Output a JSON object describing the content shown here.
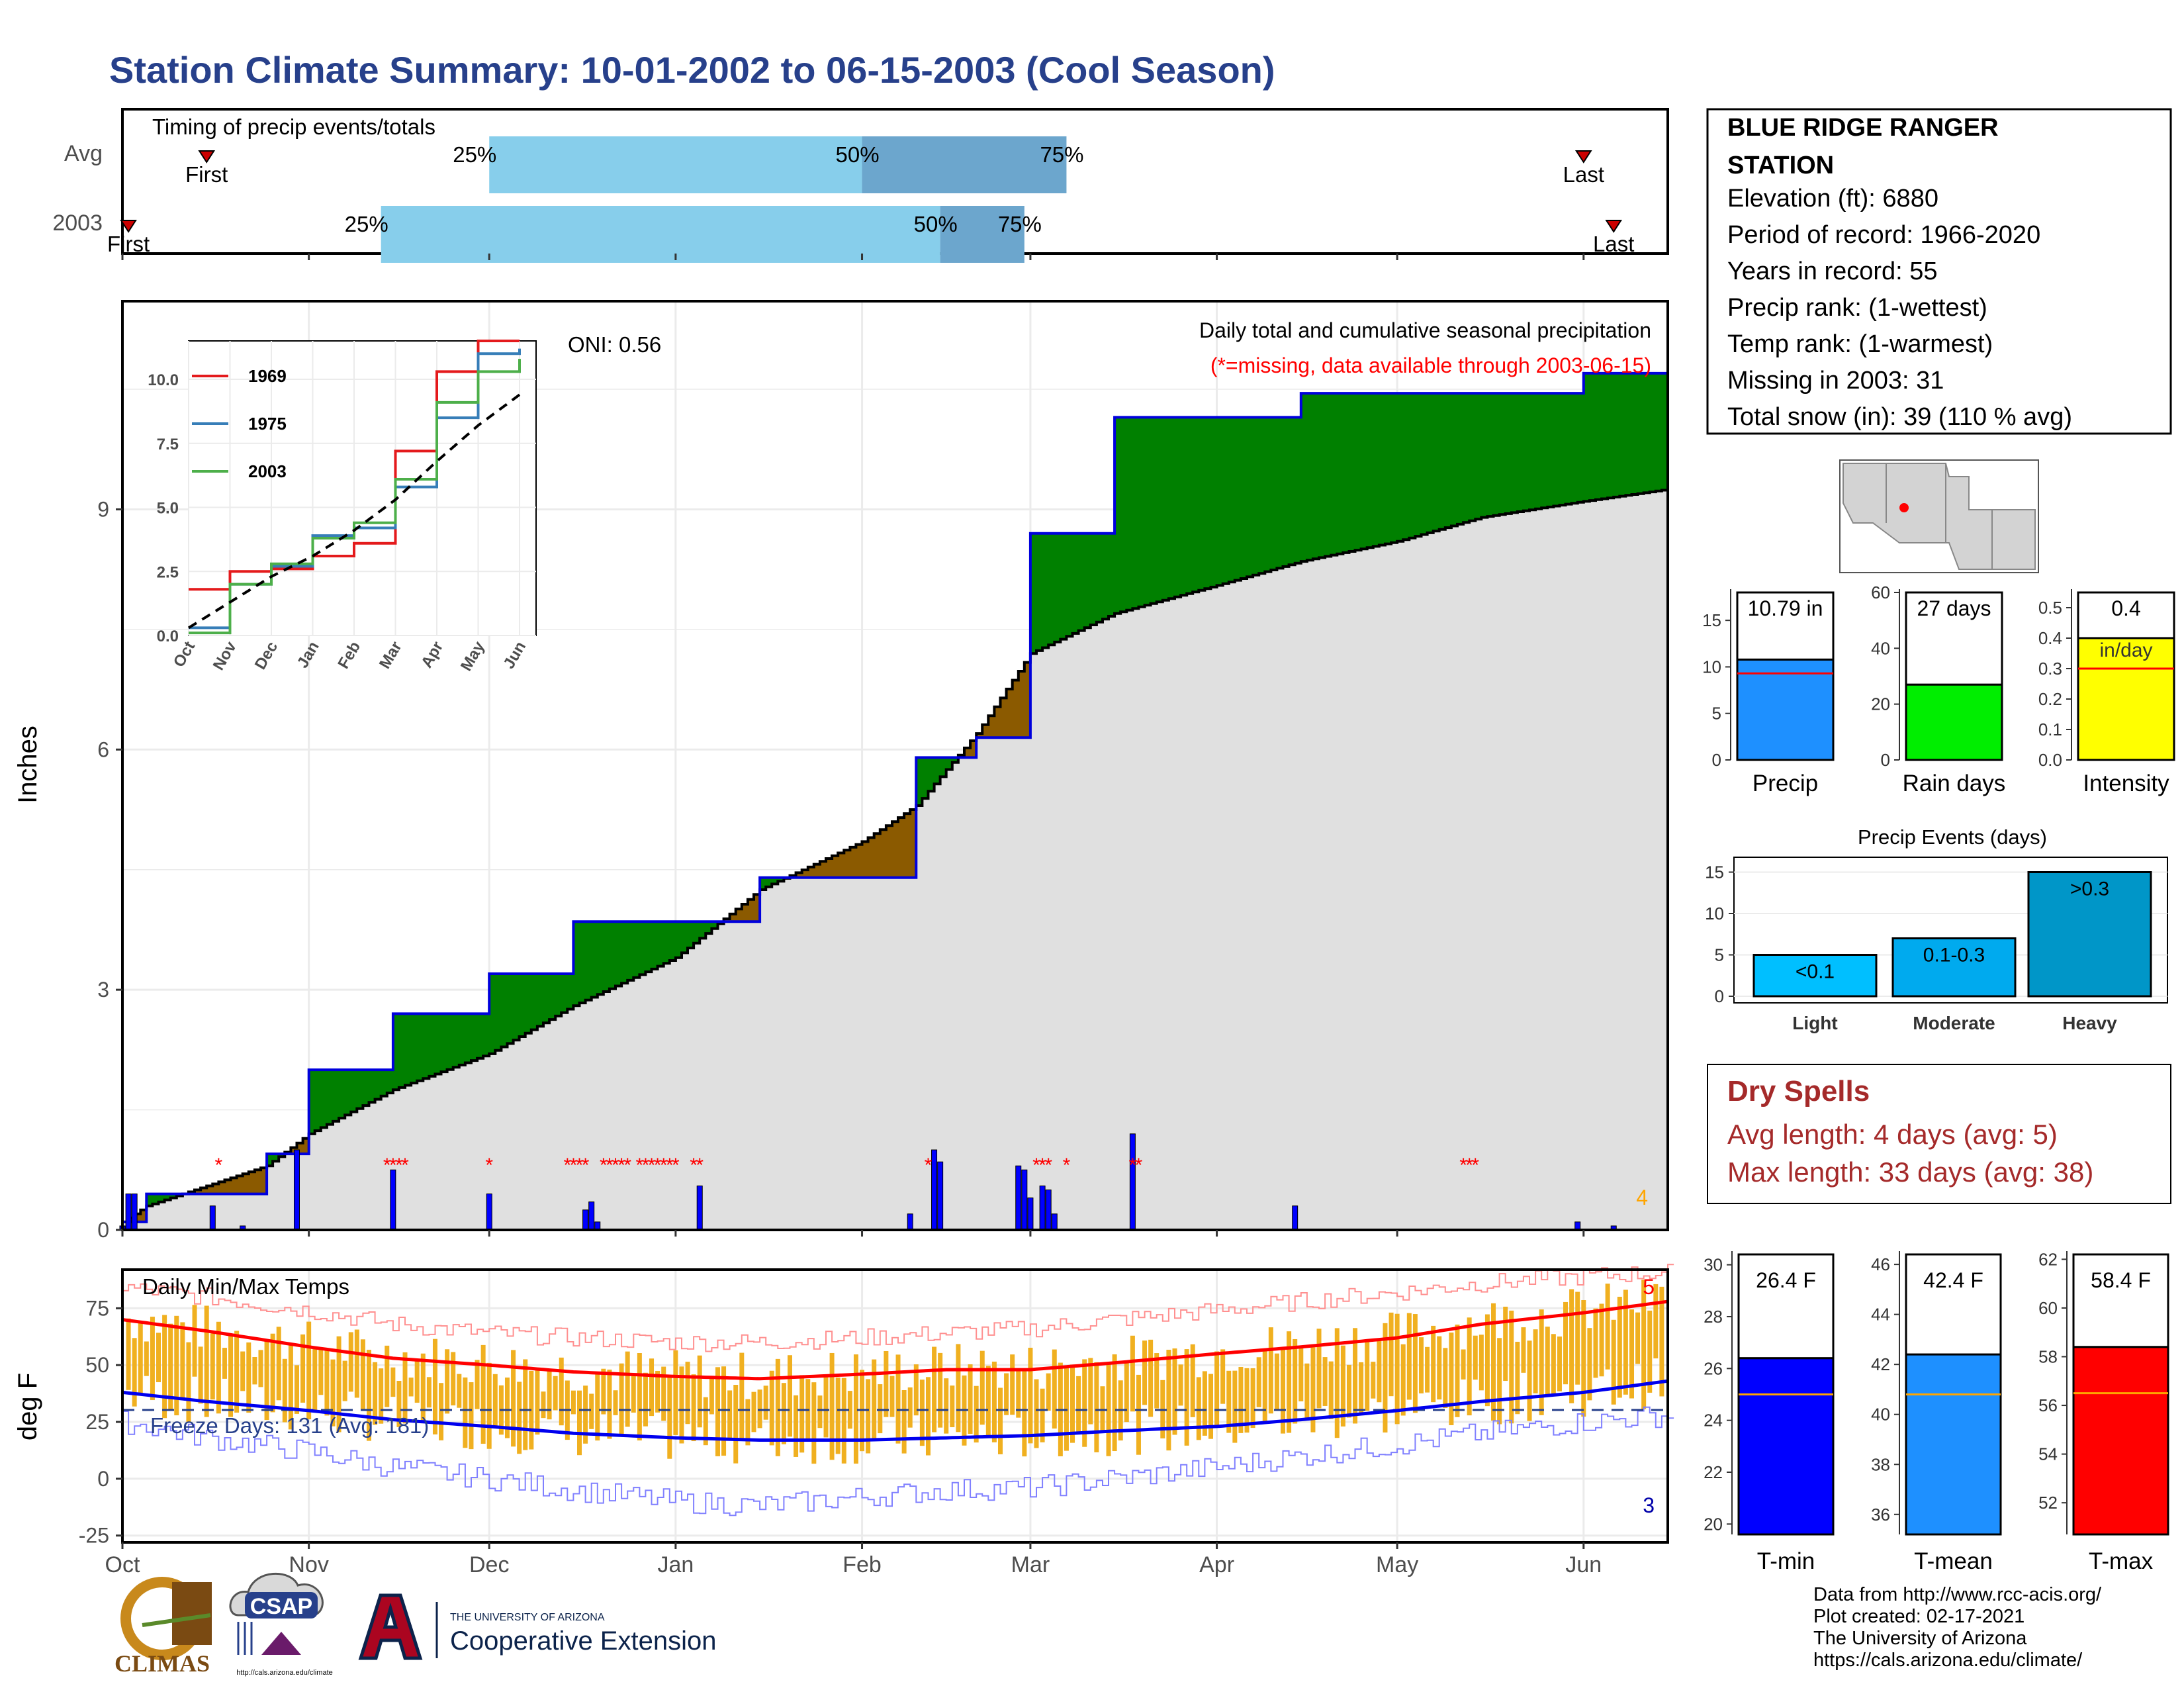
{
  "title": "Station Climate Summary: 10-01-2002 to 06-15-2003 (Cool Season)",
  "timing": {
    "label": "Timing of precip events/totals",
    "rows": [
      {
        "name": "Avg",
        "first_label": "First",
        "last_label": "Last",
        "first": "Oct 15",
        "last": "Jun 1",
        "q25": "Dec 1",
        "q50": "Feb 1",
        "q75": "Mar 7"
      },
      {
        "name": "2003",
        "first_label": "First",
        "last_label": "Last",
        "first": "Oct 2",
        "last": "Jun 6",
        "q25": "Nov 13",
        "q50": "Feb 14",
        "q75": "Feb 28"
      }
    ],
    "pct_labels": [
      "25%",
      "50%",
      "75%"
    ]
  },
  "precip_panel": {
    "ylabel": "Inches",
    "y_ticks": [
      "0",
      "3",
      "6",
      "9"
    ],
    "x_ticks": [
      "Oct",
      "Nov",
      "Dec",
      "Jan",
      "Feb",
      "Mar",
      "Apr",
      "May",
      "Jun"
    ],
    "oni": "ONI: 0.56",
    "caption1": "Daily total and cumulative seasonal precipitation",
    "caption2": "(*=missing, data available through 2003-06-15)",
    "corner_value": "4"
  },
  "inset": {
    "y_ticks": [
      "0.0",
      "2.5",
      "5.0",
      "7.5",
      "10.0"
    ],
    "x_ticks": [
      "Oct",
      "Nov",
      "Dec",
      "Jan",
      "Feb",
      "Mar",
      "Apr",
      "May",
      "Jun"
    ],
    "legend": [
      {
        "name": "1969",
        "color": "#e41a1c"
      },
      {
        "name": "1975",
        "color": "#377eb8"
      },
      {
        "name": "2003",
        "color": "#4daf4a"
      }
    ]
  },
  "temp_panel": {
    "ylabel": "deg F",
    "label": "Daily Min/Max Temps",
    "y_ticks": [
      "-25",
      "0",
      "25",
      "50",
      "75"
    ],
    "x_ticks": [
      "Oct",
      "Nov",
      "Dec",
      "Jan",
      "Feb",
      "Mar",
      "Apr",
      "May",
      "Jun"
    ],
    "freeze": "Freeze Days: 131 (Avg: 181)",
    "top_right": "5",
    "bottom_right": "3"
  },
  "station": {
    "name_line1": "BLUE RIDGE RANGER",
    "name_line2": "STATION",
    "lines": [
      "Elevation (ft): 6880",
      "Period of record: 1966-2020",
      "Years in record: 55",
      "Precip rank:  (1-wettest)",
      "Temp rank:  (1-warmest)",
      "Missing in 2003: 31",
      "Total snow (in): 39 (110 % avg)"
    ]
  },
  "summary_bars": [
    {
      "label": "Precip",
      "value_text": "10.79 in",
      "value": 10.79,
      "avg": 9.3,
      "ymax": 18,
      "ticks": [
        "0",
        "5",
        "10",
        "15"
      ],
      "color": "#1e90ff"
    },
    {
      "label": "Rain days",
      "value_text": "27 days",
      "value": 27,
      "avg": 31,
      "ymax": 60,
      "ticks": [
        "0",
        "20",
        "40",
        "60"
      ],
      "color": "#00ee00"
    },
    {
      "label": "Intensity",
      "value_text": "0.4",
      "unit_text": "in/day",
      "value": 0.4,
      "avg": 0.3,
      "ymax": 0.55,
      "ticks": [
        "0.0",
        "0.1",
        "0.2",
        "0.3",
        "0.4",
        "0.5"
      ],
      "color": "#ffff00"
    }
  ],
  "precip_events": {
    "title": "Precip Events (days)",
    "y_ticks": [
      "0",
      "5",
      "10",
      "15"
    ],
    "bars": [
      {
        "label": "Light",
        "text": "<0.1",
        "value": 5,
        "color": "#00bfff"
      },
      {
        "label": "Moderate",
        "text": "0.1-0.3",
        "value": 7,
        "color": "#00aaee"
      },
      {
        "label": "Heavy",
        "text": ">0.3",
        "value": 15,
        "color": "#0096c8"
      }
    ]
  },
  "dry_spells": {
    "title": "Dry Spells",
    "avg": "Avg length: 4 days (avg: 5)",
    "max": "Max length: 33 days (avg: 38)"
  },
  "temp_bars": [
    {
      "label": "T-min",
      "value_text": "26.4 F",
      "value": 26.4,
      "avg": 25.0,
      "ymin": 19.6,
      "ymax": 30.4,
      "ticks": [
        "20",
        "22",
        "24",
        "26",
        "28",
        "30"
      ],
      "color": "#0000ff"
    },
    {
      "label": "T-mean",
      "value_text": "42.4 F",
      "value": 42.4,
      "avg": 40.8,
      "ymin": 35.2,
      "ymax": 46.4,
      "ticks": [
        "36",
        "38",
        "40",
        "42",
        "44",
        "46"
      ],
      "color": "#1e90ff"
    },
    {
      "label": "T-max",
      "value_text": "58.4 F",
      "value": 58.4,
      "avg": 56.5,
      "ymin": 50.7,
      "ymax": 62.2,
      "ticks": [
        "52",
        "54",
        "56",
        "58",
        "60",
        "62"
      ],
      "color": "#ff0000"
    }
  ],
  "footer": {
    "lines": [
      "Data from http://www.rcc-acis.org/",
      "Plot created: 02-17-2021",
      "The University of Arizona",
      "https://cals.arizona.edu/climate/"
    ],
    "logo_climas": "CLIMAS",
    "logo_csap": "CSAP",
    "logo_csap_url": "http://cals.arizona.edu/climate",
    "logo_ua_line1": "THE UNIVERSITY OF ARIZONA",
    "logo_ua_line2": "Cooperative Extension"
  },
  "chart_data": [
    {
      "type": "area",
      "title": "Daily total and cumulative seasonal precipitation",
      "ylabel": "Inches",
      "ylim": [
        0,
        11.6
      ],
      "x": [
        "Oct 1",
        "Oct 5",
        "Oct 25",
        "Nov 1",
        "Nov 15",
        "Dec 1",
        "Dec 15",
        "Jan 1",
        "Jan 15",
        "Feb 1",
        "Feb 10",
        "Feb 20",
        "Mar 1",
        "Mar 15",
        "Apr 1",
        "Apr 15",
        "May 1",
        "May 15",
        "Jun 1",
        "Jun 15"
      ],
      "series": [
        {
          "name": "2003",
          "values": [
            0.1,
            0.45,
            0.95,
            2.0,
            2.7,
            3.2,
            3.85,
            3.85,
            4.4,
            4.4,
            5.9,
            6.15,
            8.7,
            10.15,
            10.15,
            10.45,
            10.45,
            10.45,
            10.7,
            10.85
          ]
        },
        {
          "values": [
            0.1,
            0.3,
            0.8,
            1.2,
            1.75,
            2.2,
            2.8,
            3.4,
            4.25,
            4.85,
            5.3,
            6.2,
            7.2,
            7.7,
            8.05,
            8.35,
            8.6,
            8.9,
            9.1,
            9.25
          ]
        }
      ]
    },
    {
      "type": "bar",
      "ylabel": "Inches",
      "x": [
        "Oct 1",
        "Oct 2",
        "Oct 3",
        "Oct 16",
        "Oct 21",
        "Oct 30",
        "Nov 15",
        "Dec 1",
        "Dec 17",
        "Dec 18",
        "Dec 19",
        "Jan 5",
        "Feb 9",
        "Feb 13",
        "Feb 14",
        "Feb 27",
        "Feb 28",
        "Mar 1",
        "Mar 3",
        "Mar 4",
        "Mar 5",
        "Mar 18",
        "Apr 14",
        "May 31",
        "Jun 6"
      ],
      "values": [
        0.05,
        0.45,
        0.45,
        0.3,
        0.05,
        1.0,
        0.75,
        0.45,
        0.25,
        0.35,
        0.1,
        0.55,
        0.2,
        1.0,
        0.85,
        0.8,
        0.75,
        0.4,
        0.55,
        0.5,
        0.2,
        1.2,
        0.3,
        0.1,
        0.05
      ]
    },
    {
      "type": "line",
      "title": "Daily Min/Max Temps",
      "ylabel": "deg F",
      "ylim": [
        -28,
        92
      ],
      "x": [
        "Oct 1",
        "Oct 15",
        "Nov 1",
        "Nov 15",
        "Dec 1",
        "Dec 15",
        "Jan 1",
        "Jan 15",
        "Feb 1",
        "Feb 15",
        "Mar 1",
        "Mar 15",
        "Apr 1",
        "Apr 15",
        "May 1",
        "May 15",
        "Jun 1",
        "Jun 15"
      ],
      "series": [
        {
          "values": [
            70,
            65,
            58,
            53,
            50,
            47,
            45,
            44,
            46,
            48,
            48,
            51,
            55,
            58,
            62,
            68,
            73,
            78
          ]
        },
        {
          "values": [
            38,
            34,
            30,
            26,
            23,
            20,
            18,
            17,
            17,
            18,
            19,
            21,
            23,
            26,
            30,
            34,
            38,
            43
          ]
        },
        {
          "values": [
            84,
            80,
            74,
            68,
            64,
            62,
            60,
            60,
            62,
            64,
            66,
            70,
            74,
            78,
            82,
            86,
            89,
            91
          ]
        },
        {
          "values": [
            25,
            18,
            12,
            5,
            0,
            -5,
            -10,
            -12,
            -8,
            -5,
            -4,
            0,
            5,
            10,
            15,
            20,
            25,
            28
          ]
        }
      ]
    },
    {
      "type": "line",
      "ylim": [
        0,
        11.5
      ],
      "x": [
        "Oct",
        "Nov",
        "Dec",
        "Jan",
        "Feb",
        "Mar",
        "Apr",
        "May",
        "Jun"
      ],
      "series": [
        {
          "name": "1969",
          "values": [
            1.8,
            2.5,
            2.6,
            3.1,
            3.6,
            7.2,
            10.3,
            11.5,
            11.5
          ]
        },
        {
          "name": "1975",
          "values": [
            0.3,
            2.0,
            2.7,
            3.9,
            4.2,
            5.8,
            8.5,
            11.0,
            11.2
          ]
        },
        {
          "name": "2003",
          "values": [
            0.1,
            2.0,
            2.8,
            3.8,
            4.4,
            6.1,
            9.1,
            10.3,
            10.8
          ]
        },
        {
          "values": [
            0.3,
            1.3,
            2.3,
            3.1,
            4.1,
            5.3,
            6.8,
            8.2,
            9.4
          ]
        }
      ]
    }
  ]
}
